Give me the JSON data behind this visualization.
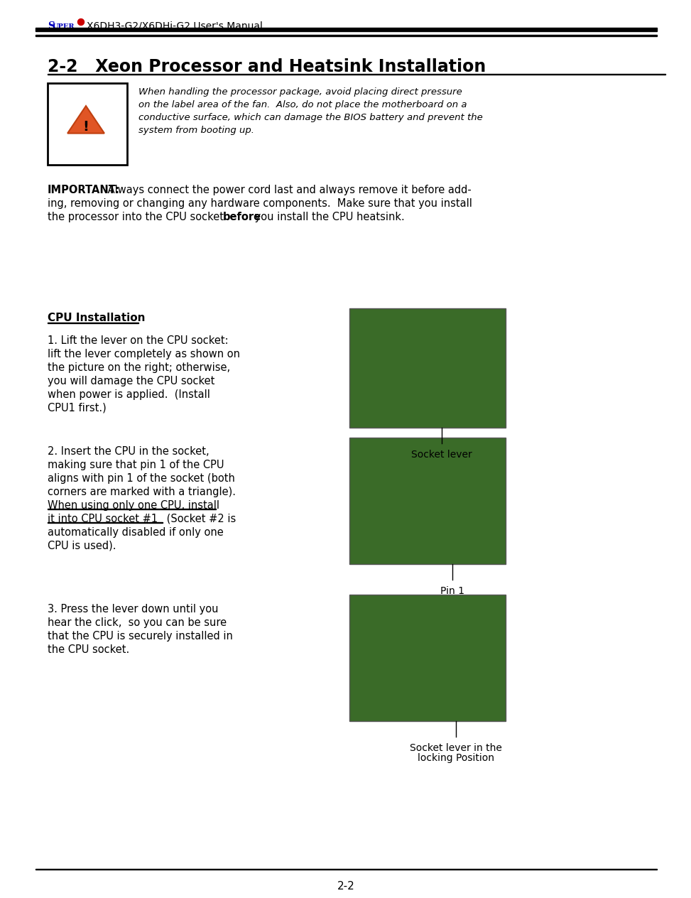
{
  "page_bg": "#ffffff",
  "header_s": "S",
  "header_uper": "UPER",
  "header_rest": "X6DH3-G2/X6DHi-G2 User's Manual",
  "dot_color": "#cc0000",
  "super_color": "#0000bb",
  "title": "2-2   Xeon Processor and Heatsink Installation",
  "warning_line1": "When handling the processor package, avoid placing direct pressure",
  "warning_line2": "on the label area of the fan.  Also, do not place the motherboard on a",
  "warning_line3": "conductive surface, which can damage the BIOS battery and prevent the",
  "warning_line4": "system from booting up.",
  "imp_bold": "IMPORTANT:",
  "imp_line1": " Always connect the power cord last and always remove it before add-",
  "imp_line2": "ing, removing or changing any hardware components.  Make sure that you install",
  "imp_line3a": "the processor into the CPU socket ",
  "imp_bold2": "before",
  "imp_line3b": " you install the CPU heatsink.",
  "cpu_title": "CPU Installation",
  "step1_lines": [
    "1. Lift the lever on the CPU socket:",
    "lift the lever completely as shown on",
    "the picture on the right; otherwise,",
    "you will damage the CPU socket",
    "when power is applied.  (Install",
    "CPU1 first.)"
  ],
  "step2a_lines": [
    "2. Insert the CPU in the socket,",
    "making sure that pin 1 of the CPU",
    "aligns with pin 1 of the socket (both",
    "corners are marked with a triangle)."
  ],
  "step2b_line1": "When using only one CPU, install",
  "step2b_line2": "it into CPU socket #1",
  "step2c": " (Socket #2 is",
  "step2d_lines": [
    "automatically disabled if only one",
    "CPU is used)."
  ],
  "step3_lines": [
    "3. Press the lever down until you",
    "hear the click,  so you can be sure",
    "that the CPU is securely installed in",
    "the CPU socket."
  ],
  "label1": "Socket lever",
  "label2": "Pin 1",
  "label3a": "Socket lever in the",
  "label3b": "locking Position",
  "footer": "2-2",
  "tri_fill": "#e05525",
  "tri_edge": "#c04010",
  "img_color": "#3a6b28",
  "img_border": "#555555",
  "text_color": "#000000"
}
